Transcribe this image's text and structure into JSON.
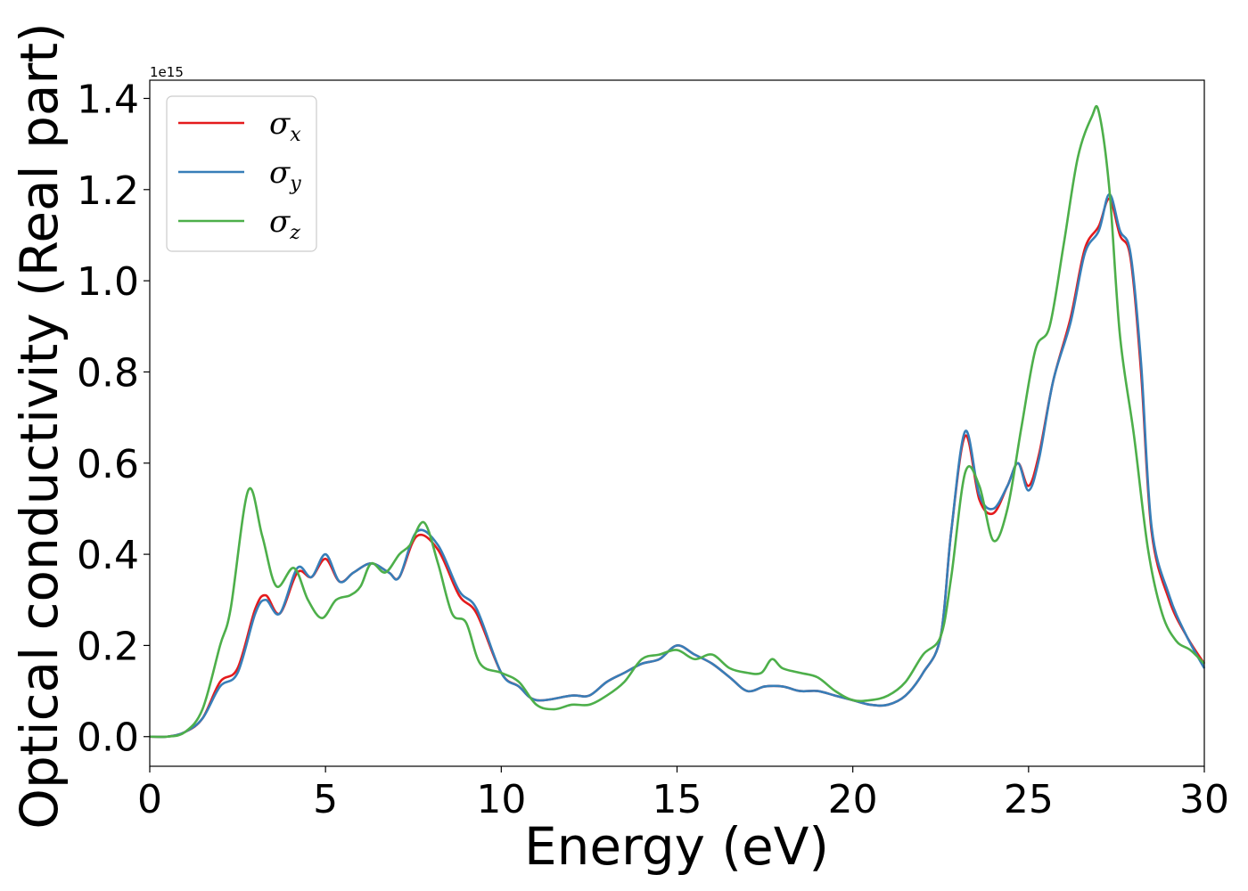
{
  "chart_data": {
    "type": "line",
    "xlabel": "Energy (eV)",
    "ylabel": "Optical conductivity (Real part)",
    "y_offset_text": "1e15",
    "xlim": [
      0,
      30
    ],
    "ylim": [
      -0.065,
      1.44
    ],
    "y_scale_factor": 1000000000000000.0,
    "xticks": [
      0,
      5,
      10,
      15,
      20,
      25,
      30
    ],
    "xtick_labels": [
      "0",
      "5",
      "10",
      "15",
      "20",
      "25",
      "30"
    ],
    "yticks": [
      0.0,
      0.2,
      0.4,
      0.6,
      0.8,
      1.0,
      1.2,
      1.4
    ],
    "ytick_labels": [
      "0.0",
      "0.2",
      "0.4",
      "0.6",
      "0.8",
      "1.0",
      "1.2",
      "1.4"
    ],
    "grid": false,
    "legend_position": "top-left",
    "series": [
      {
        "name": "σx",
        "symbol": "σ",
        "subscript": "x",
        "color": "#e41a1c",
        "x": [
          0,
          0.5,
          1.0,
          1.5,
          2.0,
          2.5,
          3.0,
          3.3,
          3.7,
          4.2,
          4.6,
          5.0,
          5.4,
          5.8,
          6.3,
          6.8,
          7.1,
          7.6,
          8.2,
          8.8,
          9.3,
          10.0,
          10.5,
          11.0,
          12.0,
          12.5,
          13.0,
          13.5,
          14.0,
          14.5,
          15.0,
          15.5,
          16.0,
          16.5,
          17.0,
          17.5,
          18.0,
          18.5,
          19.0,
          19.5,
          20.0,
          20.5,
          21.0,
          21.5,
          22.0,
          22.5,
          22.8,
          23.2,
          23.6,
          24.0,
          24.4,
          24.7,
          25.0,
          25.3,
          25.7,
          26.2,
          26.6,
          27.0,
          27.3,
          27.6,
          27.9,
          28.2,
          28.5,
          29.0,
          29.5,
          30.0
        ],
        "y": [
          0.0,
          0.0,
          0.01,
          0.04,
          0.12,
          0.15,
          0.28,
          0.31,
          0.27,
          0.36,
          0.35,
          0.39,
          0.34,
          0.36,
          0.38,
          0.36,
          0.35,
          0.44,
          0.41,
          0.31,
          0.27,
          0.14,
          0.11,
          0.08,
          0.09,
          0.09,
          0.12,
          0.14,
          0.16,
          0.17,
          0.2,
          0.18,
          0.16,
          0.13,
          0.1,
          0.11,
          0.11,
          0.1,
          0.1,
          0.09,
          0.08,
          0.07,
          0.07,
          0.09,
          0.14,
          0.22,
          0.45,
          0.66,
          0.52,
          0.49,
          0.55,
          0.6,
          0.55,
          0.62,
          0.78,
          0.92,
          1.07,
          1.12,
          1.18,
          1.1,
          1.05,
          0.8,
          0.45,
          0.3,
          0.22,
          0.16
        ]
      },
      {
        "name": "σy",
        "symbol": "σ",
        "subscript": "y",
        "color": "#377eb8",
        "x": [
          0,
          0.5,
          1.0,
          1.5,
          2.0,
          2.5,
          3.0,
          3.3,
          3.7,
          4.2,
          4.6,
          5.0,
          5.4,
          5.8,
          6.3,
          6.8,
          7.1,
          7.6,
          8.2,
          8.8,
          9.3,
          10.0,
          10.5,
          11.0,
          12.0,
          12.5,
          13.0,
          13.5,
          14.0,
          14.5,
          15.0,
          15.5,
          16.0,
          16.5,
          17.0,
          17.5,
          18.0,
          18.5,
          19.0,
          19.5,
          20.0,
          20.5,
          21.0,
          21.5,
          22.0,
          22.5,
          22.8,
          23.2,
          23.6,
          24.0,
          24.4,
          24.7,
          25.0,
          25.3,
          25.7,
          26.2,
          26.6,
          27.0,
          27.3,
          27.6,
          27.9,
          28.2,
          28.5,
          29.0,
          29.5,
          30.0
        ],
        "y": [
          0.0,
          0.0,
          0.01,
          0.04,
          0.11,
          0.14,
          0.27,
          0.3,
          0.27,
          0.37,
          0.35,
          0.4,
          0.34,
          0.36,
          0.38,
          0.36,
          0.35,
          0.45,
          0.42,
          0.32,
          0.28,
          0.14,
          0.11,
          0.08,
          0.09,
          0.09,
          0.12,
          0.14,
          0.16,
          0.17,
          0.2,
          0.18,
          0.16,
          0.13,
          0.1,
          0.11,
          0.11,
          0.1,
          0.1,
          0.09,
          0.08,
          0.07,
          0.07,
          0.09,
          0.14,
          0.22,
          0.45,
          0.67,
          0.53,
          0.5,
          0.55,
          0.6,
          0.54,
          0.61,
          0.78,
          0.91,
          1.06,
          1.11,
          1.19,
          1.11,
          1.06,
          0.82,
          0.46,
          0.31,
          0.22,
          0.15
        ]
      },
      {
        "name": "σz",
        "symbol": "σ",
        "subscript": "z",
        "color": "#4daf4a",
        "x": [
          0,
          0.5,
          1.0,
          1.5,
          2.0,
          2.3,
          2.8,
          3.2,
          3.6,
          4.1,
          4.5,
          4.9,
          5.3,
          5.7,
          6.0,
          6.3,
          6.7,
          7.1,
          7.4,
          7.8,
          8.2,
          8.6,
          9.0,
          9.4,
          10.0,
          10.5,
          11.0,
          11.5,
          12.0,
          12.5,
          13.0,
          13.5,
          14.0,
          14.5,
          15.0,
          15.5,
          16.0,
          16.5,
          17.0,
          17.4,
          17.7,
          18.0,
          18.5,
          19.0,
          19.5,
          20.0,
          20.5,
          21.0,
          21.5,
          22.0,
          22.5,
          22.8,
          23.2,
          23.6,
          24.0,
          24.4,
          24.8,
          25.2,
          25.6,
          26.0,
          26.4,
          26.8,
          27.0,
          27.3,
          27.6,
          28.0,
          28.4,
          28.8,
          29.2,
          29.6,
          30.0
        ],
        "y": [
          0.0,
          0.0,
          0.01,
          0.06,
          0.2,
          0.28,
          0.54,
          0.44,
          0.33,
          0.37,
          0.3,
          0.26,
          0.3,
          0.31,
          0.33,
          0.38,
          0.36,
          0.4,
          0.42,
          0.47,
          0.38,
          0.27,
          0.25,
          0.16,
          0.14,
          0.12,
          0.07,
          0.06,
          0.07,
          0.07,
          0.09,
          0.12,
          0.17,
          0.18,
          0.19,
          0.17,
          0.18,
          0.15,
          0.14,
          0.14,
          0.17,
          0.15,
          0.14,
          0.13,
          0.1,
          0.08,
          0.08,
          0.09,
          0.12,
          0.18,
          0.22,
          0.35,
          0.58,
          0.55,
          0.43,
          0.5,
          0.68,
          0.85,
          0.9,
          1.08,
          1.27,
          1.36,
          1.37,
          1.2,
          0.88,
          0.66,
          0.41,
          0.27,
          0.21,
          0.19,
          0.16
        ]
      }
    ]
  }
}
